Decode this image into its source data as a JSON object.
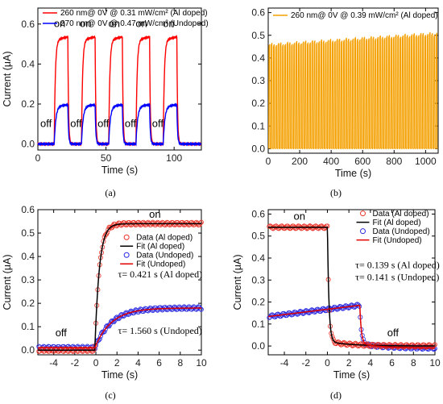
{
  "chart_data": [
    {
      "panel": "a",
      "caption": "(a)",
      "type": "line",
      "xlabel": "Time (s)",
      "ylabel": "Current (μA)",
      "xlim": [
        0,
        120
      ],
      "ylim": [
        -0.03,
        0.68
      ],
      "xticks": [
        0,
        50,
        100
      ],
      "yticks": [
        0.0,
        0.2,
        0.4,
        0.6
      ],
      "ytick_labels": [
        "0.0",
        "0.2",
        "0.4",
        "0.6"
      ],
      "legend": "top-left",
      "cycles": [
        [
          12,
          22
        ],
        [
          32,
          42
        ],
        [
          52,
          62
        ],
        [
          72,
          82
        ],
        [
          92,
          102
        ]
      ],
      "series": [
        {
          "name": "260 nm@ 0V  @ 0.31 mW/cm² (Al doped)",
          "color": "#ff0000",
          "off_value": 0.0,
          "on_value": 0.52
        },
        {
          "name": "270 nm@ 0V  @ 0.47 mW/cm²  (Undoped)",
          "color": "#0000ff",
          "off_value": 0.0,
          "on_value": 0.19
        }
      ],
      "annotations": [
        "on",
        "on",
        "on",
        "on",
        "on",
        "off",
        "off",
        "off",
        "off",
        "off"
      ]
    },
    {
      "panel": "b",
      "caption": "(b)",
      "type": "line",
      "xlabel": "Time (s)",
      "ylabel": "",
      "xlim": [
        0,
        1080
      ],
      "ylim": [
        -0.02,
        0.62
      ],
      "xticks": [
        0,
        200,
        400,
        600,
        800,
        1000
      ],
      "yticks": [
        0.0,
        0.1,
        0.2,
        0.3,
        0.4,
        0.5,
        0.6
      ],
      "ytick_labels": [
        "0.0",
        "0.1",
        "0.2",
        "0.3",
        "0.4",
        "0.5",
        "0.6"
      ],
      "legend": "top-left",
      "cycle_count": 75,
      "series": [
        {
          "name": "260 nm@ 0V  @ 0.39 mW/cm² (Al doped)",
          "color": "#f4a000",
          "off_value": 0.0,
          "on_value_start": 0.46,
          "on_value_end": 0.51
        }
      ]
    },
    {
      "panel": "c",
      "caption": "(c)",
      "type": "scatter",
      "xlabel": "Time (s)",
      "ylabel": "Current (μA)",
      "xlim": [
        -5.5,
        10
      ],
      "ylim": [
        -0.02,
        0.6
      ],
      "xticks": [
        -4,
        -2,
        0,
        2,
        4,
        6,
        8,
        10
      ],
      "yticks": [
        0.0,
        0.1,
        0.2,
        0.3,
        0.4,
        0.5,
        0.6
      ],
      "ytick_labels": [
        "0.0",
        "0.1",
        "0.2",
        "0.3",
        "0.4",
        "0.5",
        "0.6"
      ],
      "legend": "right",
      "series": [
        {
          "name": "Data (Al doped)",
          "kind": "scatter",
          "color": "#e8342a",
          "baseline": 0.0,
          "plateau": 0.54,
          "tau": 0.421,
          "t0": -0.1
        },
        {
          "name": "Fit (Al doped)",
          "kind": "line",
          "color": "#000000",
          "baseline": 0.0,
          "plateau": 0.54,
          "tau": 0.421,
          "t0": -0.1
        },
        {
          "name": "Data (Undoped)",
          "kind": "scatter",
          "color": "#2a2ae0",
          "baseline": 0.01,
          "plateau": 0.18,
          "tau": 1.56,
          "t0": -0.1
        },
        {
          "name": "Fit (Undoped)",
          "kind": "line",
          "color": "#e00000",
          "baseline": 0.01,
          "plateau": 0.18,
          "tau": 1.56,
          "t0": -0.1
        }
      ],
      "annotations": {
        "on": "on",
        "off": "off",
        "tau_al": "τ= 0.421 s (Al doped)",
        "tau_un": "τ= 1.560 s (Undoped)"
      }
    },
    {
      "panel": "d",
      "caption": "(d)",
      "type": "scatter",
      "xlabel": "Time (s)",
      "ylabel": "Current (μA)",
      "xlim": [
        -5.5,
        10
      ],
      "ylim": [
        -0.04,
        0.62
      ],
      "xticks": [
        -4,
        -2,
        0,
        2,
        4,
        6,
        8,
        10
      ],
      "yticks": [
        0.0,
        0.1,
        0.2,
        0.3,
        0.4,
        0.5,
        0.6
      ],
      "ytick_labels": [
        "0.0",
        "0.1",
        "0.2",
        "0.3",
        "0.4",
        "0.5",
        "0.6"
      ],
      "legend": "top-right",
      "series": [
        {
          "name": "Data (Al doped)",
          "kind": "scatter",
          "color": "#e8342a",
          "start": 0.54,
          "end": 0.0,
          "tau": 0.139,
          "t0": 0.0
        },
        {
          "name": "Fit (Al doped)",
          "kind": "line",
          "color": "#000000",
          "start": 0.54,
          "end": 0.0,
          "tau": 0.139,
          "t0": 0.0
        },
        {
          "name": "Data (Undoped)",
          "kind": "scatter",
          "color": "#2a2ae0",
          "start": 0.185,
          "end": -0.01,
          "tau": 0.141,
          "t0": 3.0
        },
        {
          "name": "Fit (Undoped)",
          "kind": "line",
          "color": "#e00000",
          "start": 0.185,
          "end": -0.01,
          "tau": 0.141,
          "t0": 3.0
        }
      ],
      "annotations": {
        "on": "on",
        "off": "off",
        "tau_al": "τ= 0.139 s (Al doped)",
        "tau_un": "τ= 0.141 s (Undoped)"
      }
    }
  ]
}
